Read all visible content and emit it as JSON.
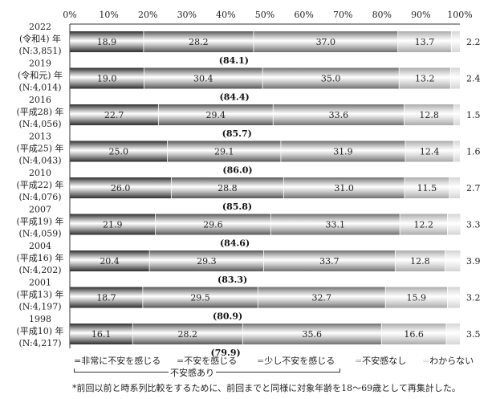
{
  "chart_data": {
    "type": "bar",
    "orientation": "horizontal",
    "stacked": true,
    "xlim": [
      0,
      100
    ],
    "x_ticks": [
      "0%",
      "10%",
      "20%",
      "30%",
      "40%",
      "50%",
      "60%",
      "70%",
      "80%",
      "90%",
      "100%"
    ],
    "categories": [
      [
        "2022",
        "(令和4) 年",
        "(N:3,851)"
      ],
      [
        "2019",
        "(令和元) 年",
        "(N:4,014)"
      ],
      [
        "2016",
        "(平成28) 年",
        "(N:4,056)"
      ],
      [
        "2013",
        "(平成25) 年",
        "(N:4,043)"
      ],
      [
        "2010",
        "(平成22) 年",
        "(N:4,076)"
      ],
      [
        "2007",
        "(平成19) 年",
        "(N:4,059)"
      ],
      [
        "2004",
        "(平成16) 年",
        "(N:4,202)"
      ],
      [
        "2001",
        "(平成13) 年",
        "(N:4,197)"
      ],
      [
        "1998",
        "(平成10) 年",
        "(N:4,217)"
      ]
    ],
    "series": [
      {
        "name": "非常に不安を感じる",
        "color": "#2b2b2b",
        "values": [
          18.9,
          19.0,
          22.7,
          25.0,
          26.0,
          21.9,
          20.4,
          18.7,
          16.1
        ]
      },
      {
        "name": "不安を感じる",
        "color": "#555555",
        "values": [
          28.2,
          30.4,
          29.4,
          29.1,
          28.8,
          29.6,
          29.3,
          29.5,
          28.2
        ]
      },
      {
        "name": "少し不安を感じる",
        "color": "#6e6e6e",
        "values": [
          37.0,
          35.0,
          33.6,
          31.9,
          31.0,
          33.1,
          33.7,
          32.7,
          35.6
        ]
      },
      {
        "name": "不安感なし",
        "color": "#a9a9a9",
        "values": [
          13.7,
          13.2,
          12.8,
          12.4,
          11.5,
          12.2,
          12.8,
          15.9,
          16.6
        ]
      },
      {
        "name": "わからない",
        "color": "#d4d4d4",
        "values": [
          2.2,
          2.4,
          1.5,
          1.6,
          2.7,
          3.3,
          3.9,
          3.2,
          3.5
        ]
      }
    ],
    "value_labels": [
      [
        "18.9",
        "28.2",
        "37.0",
        "13.7",
        "2.2"
      ],
      [
        "19.0",
        "30.4",
        "35.0",
        "13.2",
        "2.4"
      ],
      [
        "22.7",
        "29.4",
        "33.6",
        "12.8",
        "1.5"
      ],
      [
        "25.0",
        "29.1",
        "31.9",
        "12.4",
        "1.6"
      ],
      [
        "26.0",
        "28.8",
        "31.0",
        "11.5",
        "2.7"
      ],
      [
        "21.9",
        "29.6",
        "33.1",
        "12.2",
        "3.3"
      ],
      [
        "20.4",
        "29.3",
        "33.7",
        "12.8",
        "3.9"
      ],
      [
        "18.7",
        "29.5",
        "32.7",
        "15.9",
        "3.2"
      ],
      [
        "16.1",
        "28.2",
        "35.6",
        "16.6",
        "3.5"
      ]
    ],
    "subtotals": [
      "(84.1)",
      "(84.4)",
      "(85.7)",
      "(86.0)",
      "(85.8)",
      "(84.6)",
      "(83.3)",
      "(80.9)",
      "(79.9)"
    ],
    "legend_position": "bottom",
    "legend_markers": [
      "=",
      "=",
      "=",
      "=",
      "="
    ],
    "bracket_label": "不安感あり",
    "footnote": "*前回以前と時系列比較をするために、前回までと同様に対象年齢を18～69歳として再集計した。"
  }
}
